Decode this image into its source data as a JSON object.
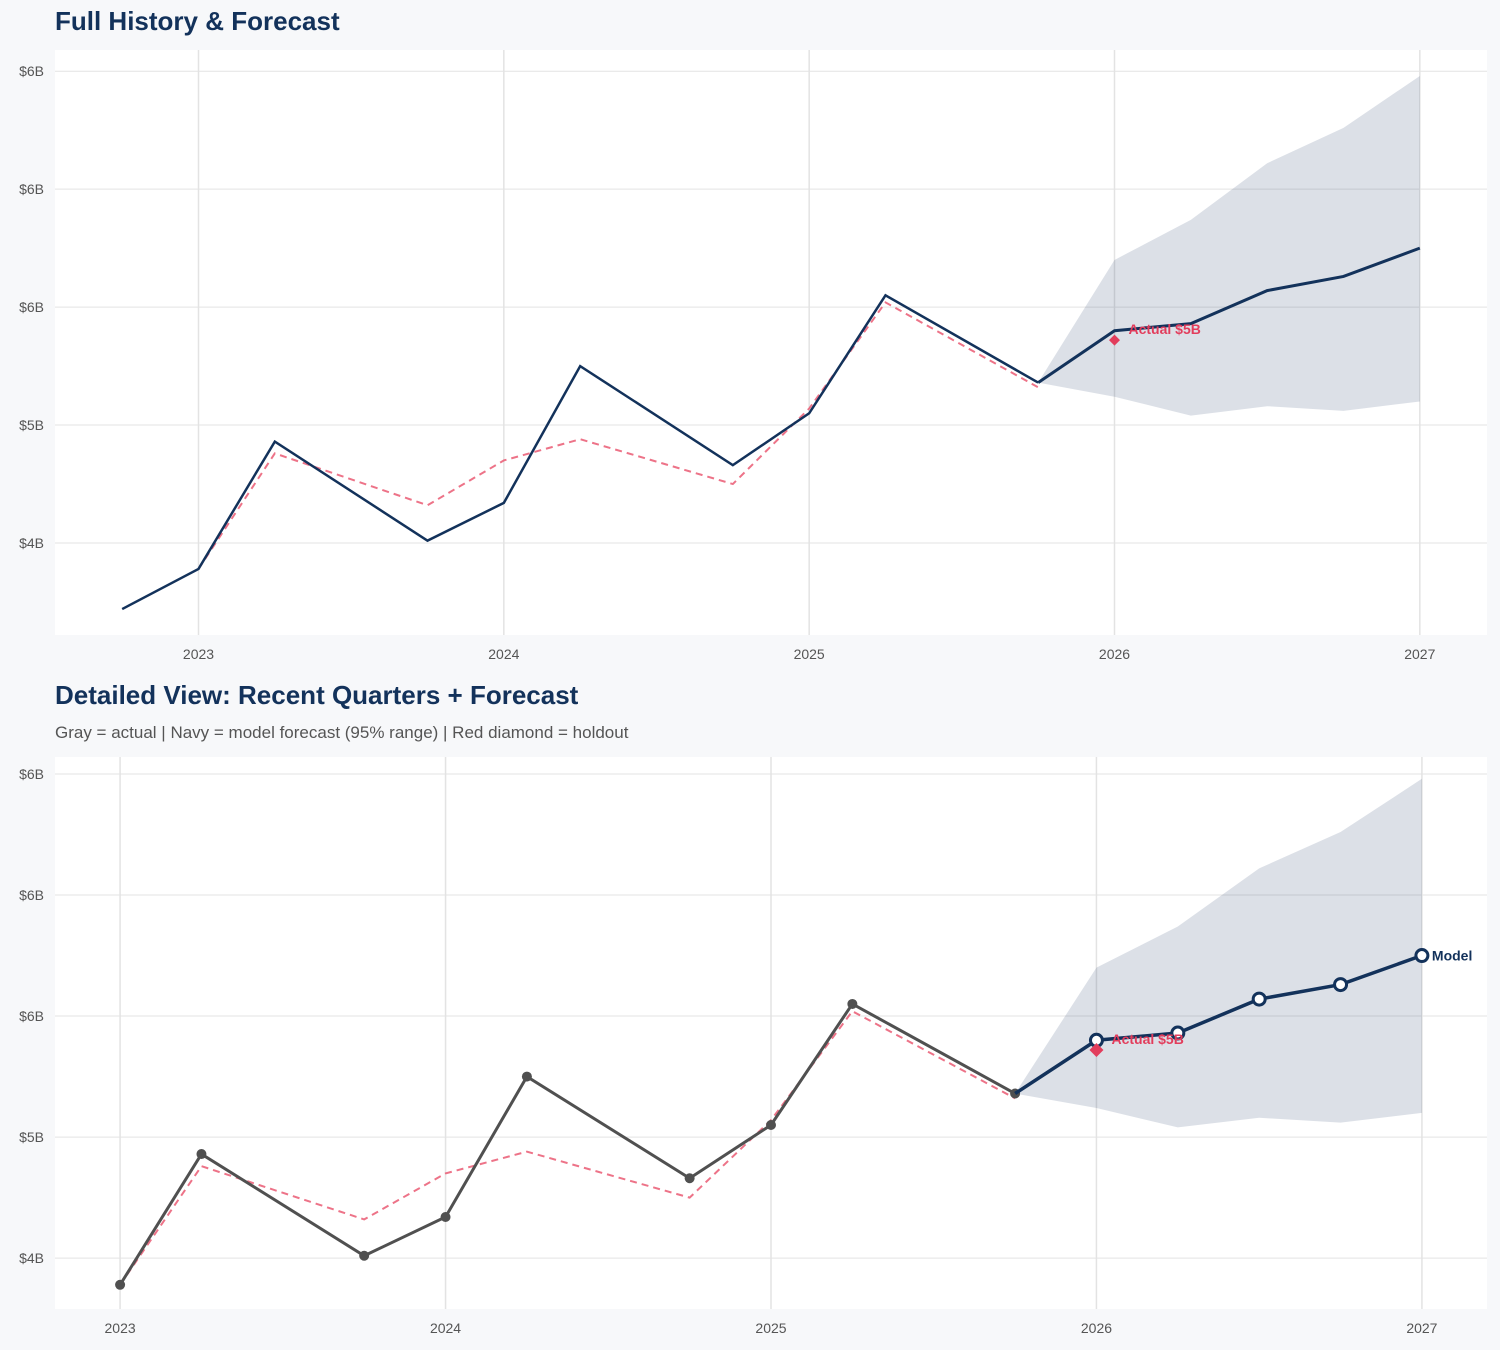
{
  "colors": {
    "navy": "#13325b",
    "actual_gray": "#505050",
    "fitted_red": "#e8506a",
    "holdout_red": "#e23d5c",
    "band": "#dbe0e6",
    "grid": "#e3e3e3",
    "background": "#f7f8fa"
  },
  "chart_data": [
    {
      "type": "line",
      "title": "Full History & Forecast",
      "subtitle": "",
      "xlabel": "",
      "ylabel": "",
      "xlim": [
        2022.53,
        2027.22
      ],
      "ylim": [
        4.11,
        6.59
      ],
      "grid": true,
      "x_ticks": [
        2023,
        2024,
        2025,
        2026,
        2027
      ],
      "x_tick_labels": [
        "2023",
        "2024",
        "2025",
        "2026",
        "2027"
      ],
      "y_ticks": [
        4.5,
        5.0,
        5.5,
        6.0,
        6.5
      ],
      "y_tick_labels": [
        "$4B",
        "$5B",
        "$6B",
        "$6B",
        "$6B"
      ],
      "actual": {
        "x": [
          2022.75,
          2023.0,
          2023.25,
          2023.75,
          2024.0,
          2024.25,
          2024.75,
          2025.0,
          2025.25,
          2025.75
        ],
        "y": [
          4.22,
          4.39,
          4.93,
          4.51,
          4.67,
          5.25,
          4.83,
          5.05,
          5.55,
          5.18
        ],
        "markers": false,
        "color": "#13325b"
      },
      "fitted": {
        "x": [
          2023.0,
          2023.25,
          2023.75,
          2024.0,
          2024.25,
          2024.75,
          2025.0,
          2025.25,
          2025.75
        ],
        "y": [
          4.39,
          4.88,
          4.66,
          4.85,
          4.94,
          4.75,
          5.07,
          5.52,
          5.16
        ]
      },
      "forecast": {
        "x": [
          2025.75,
          2026.0,
          2026.25,
          2026.5,
          2026.75,
          2027.0
        ],
        "y": [
          5.18,
          5.4,
          5.43,
          5.57,
          5.63,
          5.75
        ],
        "upper": [
          5.18,
          5.7,
          5.87,
          6.11,
          6.26,
          6.48
        ],
        "lower": [
          5.18,
          5.12,
          5.04,
          5.08,
          5.06,
          5.1
        ],
        "markers": false,
        "label": ""
      },
      "holdout": {
        "x": 2026.0,
        "y": 5.36,
        "label": "Actual $5B"
      }
    },
    {
      "type": "line",
      "title": "Detailed View: Recent Quarters + Forecast",
      "subtitle": "Gray = actual  |  Navy = model forecast (95% range)  |  Red diamond = holdout",
      "xlabel": "",
      "ylabel": "",
      "xlim": [
        2022.8,
        2027.2
      ],
      "ylim": [
        4.29,
        6.57
      ],
      "grid": true,
      "x_ticks": [
        2023,
        2024,
        2025,
        2026,
        2027
      ],
      "x_tick_labels": [
        "2023",
        "2024",
        "2025",
        "2026",
        "2027"
      ],
      "y_ticks": [
        4.5,
        5.0,
        5.5,
        6.0,
        6.5
      ],
      "y_tick_labels": [
        "$4B",
        "$5B",
        "$6B",
        "$6B",
        "$6B"
      ],
      "actual": {
        "x": [
          2023.0,
          2023.25,
          2023.75,
          2024.0,
          2024.25,
          2024.75,
          2025.0,
          2025.25,
          2025.75
        ],
        "y": [
          4.39,
          4.93,
          4.51,
          4.67,
          5.25,
          4.83,
          5.05,
          5.55,
          5.18
        ],
        "markers": true,
        "color": "#505050"
      },
      "fitted": {
        "x": [
          2023.0,
          2023.25,
          2023.75,
          2024.0,
          2024.25,
          2024.75,
          2025.0,
          2025.25,
          2025.75
        ],
        "y": [
          4.39,
          4.88,
          4.66,
          4.85,
          4.94,
          4.75,
          5.07,
          5.52,
          5.16
        ]
      },
      "forecast": {
        "x": [
          2025.75,
          2026.0,
          2026.25,
          2026.5,
          2026.75,
          2027.0
        ],
        "y": [
          5.18,
          5.4,
          5.43,
          5.57,
          5.63,
          5.75
        ],
        "upper": [
          5.18,
          5.7,
          5.87,
          6.11,
          6.26,
          6.48
        ],
        "lower": [
          5.18,
          5.12,
          5.04,
          5.08,
          5.06,
          5.1
        ],
        "markers": true,
        "label": "Model"
      },
      "holdout": {
        "x": 2026.0,
        "y": 5.36,
        "label": "Actual $5B"
      }
    }
  ]
}
